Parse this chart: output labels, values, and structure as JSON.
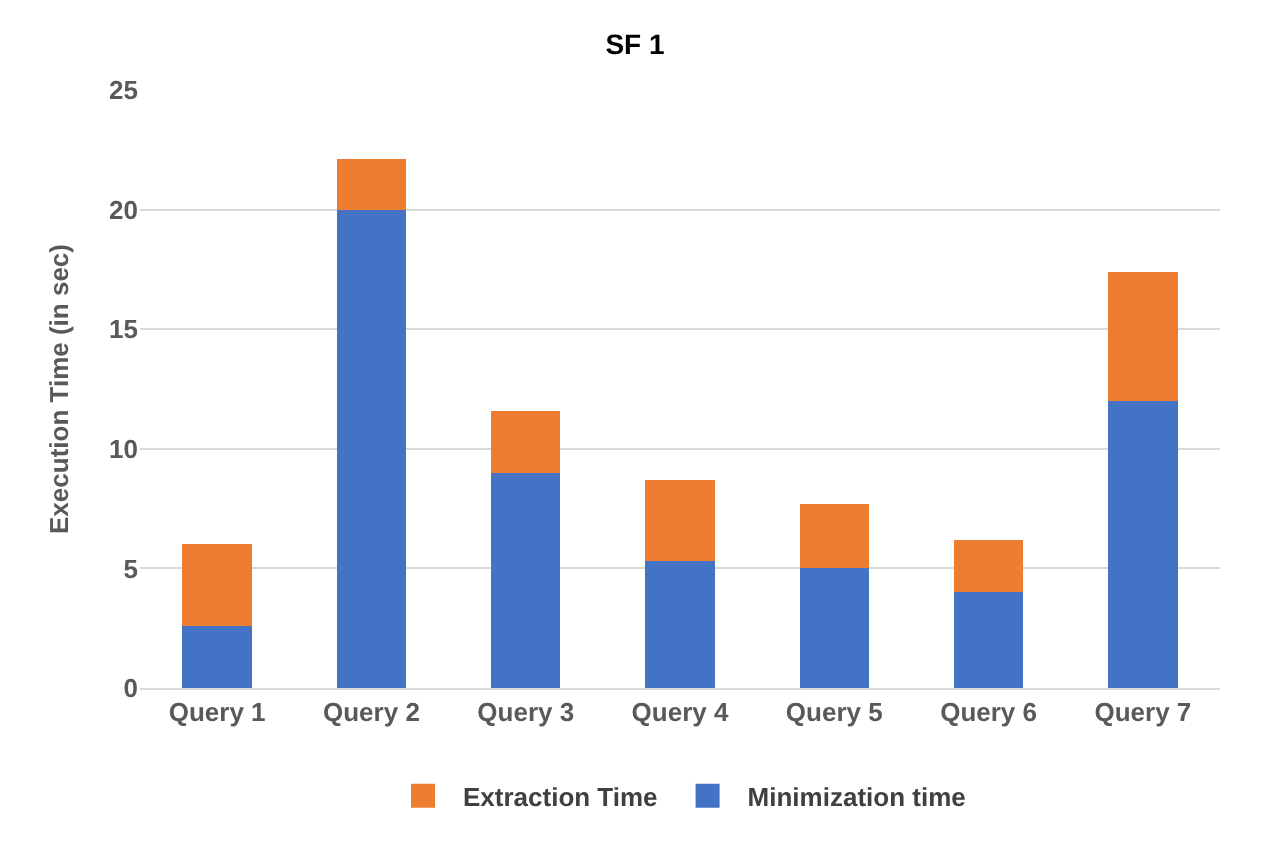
{
  "chart_data": {
    "type": "bar",
    "title": "SF 1",
    "ylabel": "Execution Time (in sec)",
    "categories": [
      "Query 1",
      "Query 2",
      "Query 3",
      "Query 4",
      "Query 5",
      "Query 6",
      "Query 7"
    ],
    "series": [
      {
        "name": "Minimization time",
        "color": "#4472c4",
        "values": [
          2.6,
          20.0,
          9.0,
          5.3,
          5.0,
          4.0,
          12.0
        ]
      },
      {
        "name": "Extraction Time",
        "color": "#ed7d31",
        "values": [
          3.4,
          2.1,
          2.6,
          3.4,
          2.7,
          2.2,
          5.4
        ]
      }
    ],
    "stacked": true,
    "ylim": [
      0,
      25
    ],
    "yticks": [
      0,
      5,
      10,
      15,
      20,
      25
    ],
    "grid": "y",
    "legend": "bottom"
  }
}
